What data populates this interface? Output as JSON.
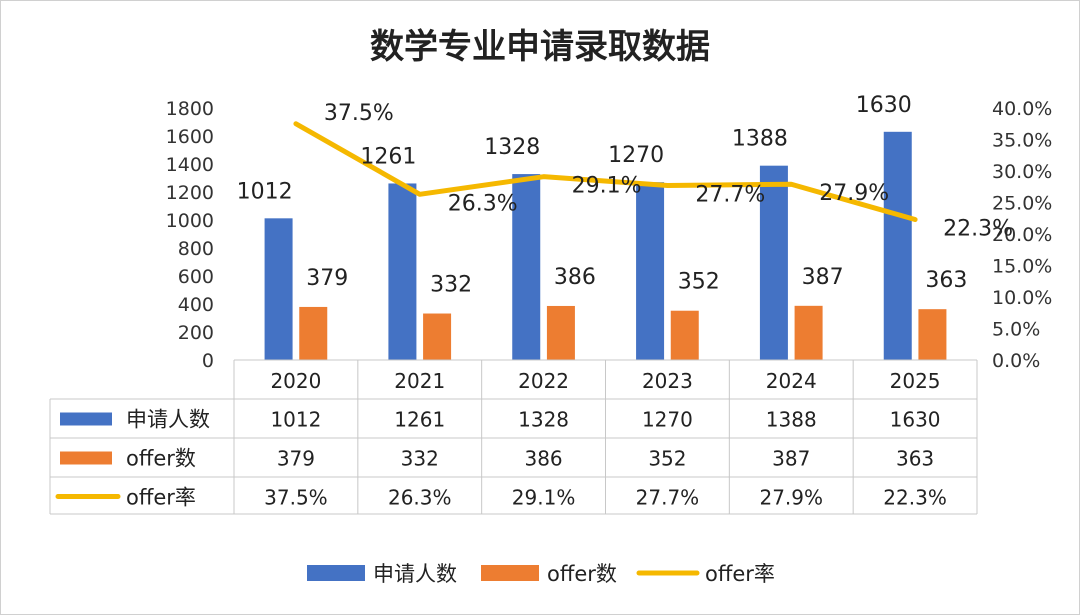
{
  "chart_data": {
    "type": "bar",
    "title": "数学专业申请录取数据",
    "categories": [
      "2020",
      "2021",
      "2022",
      "2023",
      "2024",
      "2025"
    ],
    "series": [
      {
        "name": "申请人数",
        "type": "bar",
        "axis": "left",
        "color": "#4472C4",
        "values": [
          1012,
          1261,
          1328,
          1270,
          1388,
          1630
        ],
        "labels": [
          "1012",
          "1261",
          "1328",
          "1270",
          "1388",
          "1630"
        ]
      },
      {
        "name": "offer数",
        "type": "bar",
        "axis": "left",
        "color": "#ED7D31",
        "values": [
          379,
          332,
          386,
          352,
          387,
          363
        ],
        "labels": [
          "379",
          "332",
          "386",
          "352",
          "387",
          "363"
        ]
      },
      {
        "name": "offer率",
        "type": "line",
        "axis": "right",
        "color": "#F5B800",
        "values": [
          37.5,
          26.3,
          29.1,
          27.7,
          27.9,
          22.3
        ],
        "labels": [
          "37.5%",
          "26.3%",
          "29.1%",
          "27.7%",
          "27.9%",
          "22.3%"
        ]
      }
    ],
    "y_left": {
      "min": 0,
      "max": 1800,
      "ticks": [
        "0",
        "200",
        "400",
        "600",
        "800",
        "1000",
        "1200",
        "1400",
        "1600",
        "1800"
      ]
    },
    "y_right": {
      "min": 0,
      "max": 40,
      "ticks": [
        "0.0%",
        "5.0%",
        "10.0%",
        "15.0%",
        "20.0%",
        "25.0%",
        "30.0%",
        "35.0%",
        "40.0%"
      ]
    },
    "data_table": true,
    "legend_position": "bottom",
    "grid": false
  }
}
